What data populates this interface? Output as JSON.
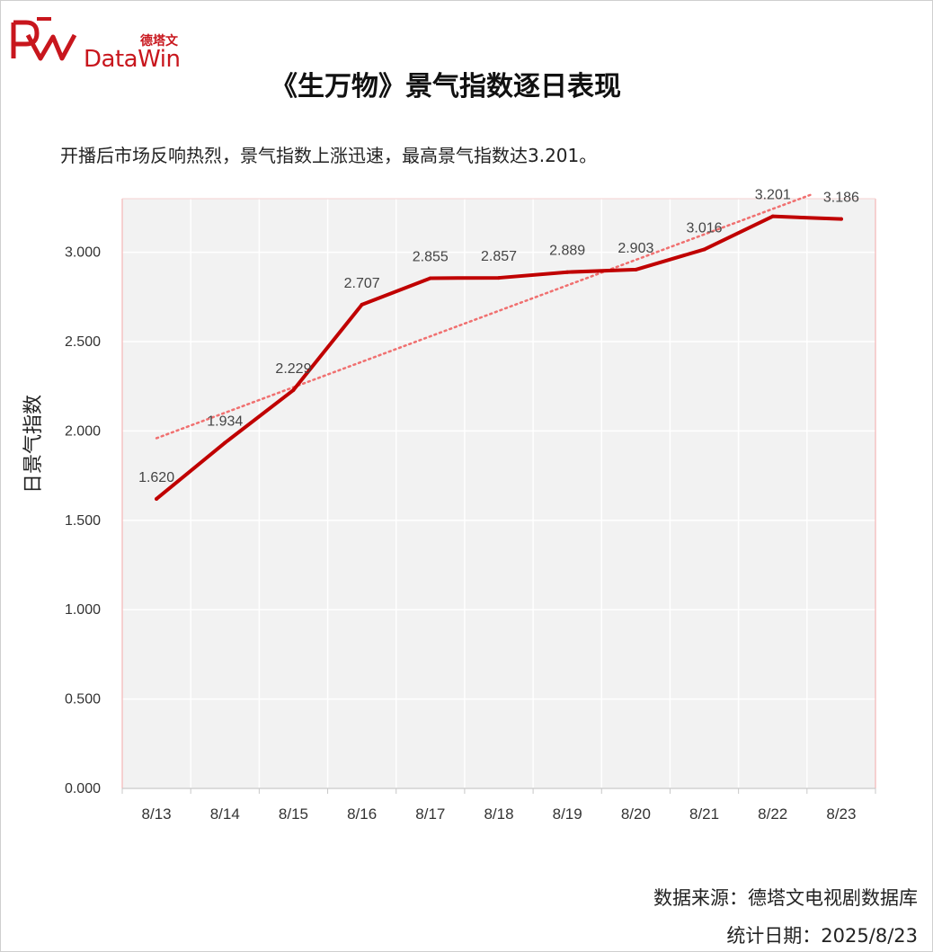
{
  "brand": {
    "cn": "德塔文",
    "en": "DataWin",
    "color": "#c8161d"
  },
  "title": "《生万物》景气指数逐日表现",
  "subtitle": "开播后市场反响热烈，景气指数上涨迅速，最高景气指数达3.201。",
  "footer": {
    "source": "数据来源：德塔文电视剧数据库",
    "date": "统计日期：2025/8/23"
  },
  "chart_data": {
    "type": "line",
    "ylabel": "日景气指数",
    "xlabel": "",
    "categories": [
      "8/13",
      "8/14",
      "8/15",
      "8/16",
      "8/17",
      "8/18",
      "8/19",
      "8/20",
      "8/21",
      "8/22",
      "8/23"
    ],
    "values": [
      1.62,
      1.934,
      2.229,
      2.707,
      2.855,
      2.857,
      2.889,
      2.903,
      3.016,
      3.201,
      3.186
    ],
    "data_labels": [
      "1.620",
      "1.934",
      "2.229",
      "2.707",
      "2.855",
      "2.857",
      "2.889",
      "2.903",
      "3.016",
      "3.201",
      "3.186"
    ],
    "ylim": [
      0,
      3.3
    ],
    "yticks": [
      "0.000",
      "0.500",
      "1.000",
      "1.500",
      "2.000",
      "2.500",
      "3.000"
    ],
    "ytick_values": [
      0,
      0.5,
      1.0,
      1.5,
      2.0,
      2.5,
      3.0
    ],
    "trendline": {
      "type": "linear",
      "style": "dotted",
      "color": "#f07070"
    },
    "line_color": "#c00000",
    "plot_background": "#f2f2f2",
    "grid": true
  }
}
